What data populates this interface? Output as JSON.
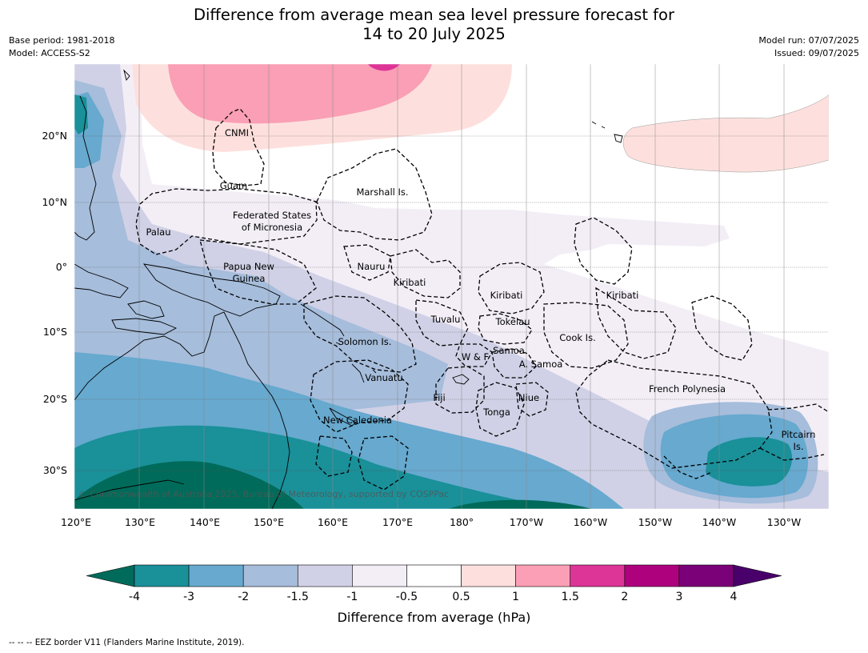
{
  "title": {
    "line1": "Difference from average mean sea level pressure forecast for",
    "line2": "14 to 20 July 2025"
  },
  "meta": {
    "base_period": "Base period: 1981-2018",
    "model": "Model: ACCESS-S2",
    "model_run": "Model run: 07/07/2025",
    "issued": "Issued: 09/07/2025"
  },
  "map": {
    "lon_ticks": [
      "120°E",
      "130°E",
      "140°E",
      "150°E",
      "160°E",
      "170°E",
      "180°",
      "170°W",
      "160°W",
      "150°W",
      "140°W",
      "130°W"
    ],
    "lat_ticks": [
      "20°N",
      "10°N",
      "0°",
      "10°S",
      "20°S",
      "30°S"
    ],
    "regions": {
      "cnmi": "CNMI",
      "guam": "Guam",
      "marshall": "Marshall Is.",
      "fsm_line1": "Federated States",
      "fsm_line2": "of Micronesia",
      "palau": "Palau",
      "png_line1": "Papua New",
      "png_line2": "Guinea",
      "nauru": "Nauru",
      "kiribati_west": "Kiribati",
      "kiribati_central": "Kiribati",
      "kiribati_east": "Kiribati",
      "tuvalu": "Tuvalu",
      "tokelau": "Tokelau",
      "cook": "Cook Is.",
      "solomon": "Solomon Is.",
      "wallis_futuna": "W & F",
      "samoa": "Samoa",
      "american_samoa": "A. Samoa",
      "vanuatu": "Vanuatu",
      "fiji": "Fiji",
      "niue": "Niue",
      "tonga": "Tonga",
      "french_polynesia": "French Polynesia",
      "new_caledonia": "New Caledonia",
      "pitcairn_line1": "Pitcairn",
      "pitcairn_line2": "Is."
    },
    "copyright": "© Commonwealth of Australia 2025, Bureau of Meteorology, supported by COSPPac"
  },
  "colorbar": {
    "ticks": [
      "-4",
      "-3",
      "-2",
      "-1.5",
      "-1",
      "-0.5",
      "0.5",
      "1",
      "1.5",
      "2",
      "3",
      "4"
    ],
    "colors": [
      "#006b5a",
      "#1a9099",
      "#67a9cf",
      "#a6bddb",
      "#d0d1e6",
      "#f3eef6",
      "#ffffff",
      "#fde0dd",
      "#fa9fb5",
      "#dd3497",
      "#ae017e",
      "#7a0177",
      "#49006a"
    ],
    "label": "Difference from average (hPa)"
  },
  "footnote": "--  --  -- EEZ border V11 (Flanders Marine Institute, 2019)."
}
